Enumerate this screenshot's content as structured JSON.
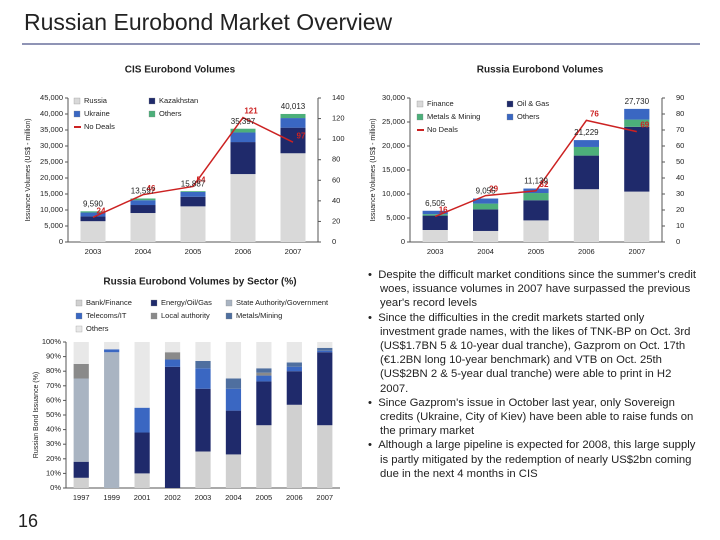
{
  "title": "Russian Eurobond Market Overview",
  "page_number": "16",
  "bullets": [
    "Despite the difficult market conditions since the summer's credit woes, issuance volumes in 2007 have surpassed the previous year's record levels",
    "Since the difficulties in the credit markets started only investment grade names, with the likes of TNK-BP on Oct. 3rd (US$1.7BN 5 & 10-year dual tranche), Gazprom on Oct. 17th (€1.2BN long 10-year benchmark) and VTB on Oct. 25th (US$2BN 2 & 5-year dual tranche) were able to print in H2 2007.",
    "Since Gazprom's issue in October last year, only Sovereign credits (Ukraine, City of Kiev) have been able to raise funds on the primary market",
    "Although a large pipeline is expected for 2008, this large supply is partly mitigated by the redemption of nearly US$2bn coming due in the next 4 months in CIS"
  ],
  "chart_data": [
    {
      "type": "bar",
      "stacked": true,
      "title": "CIS Eurobond Volumes",
      "y_label": "Issuance Volumes (US$ - million)",
      "categories": [
        "2003",
        "2004",
        "2005",
        "2006",
        "2007"
      ],
      "series": [
        {
          "name": "Russia",
          "color": "#d9d9d9",
          "values": [
            6505,
            9055,
            11139,
            21229,
            27730
          ]
        },
        {
          "name": "Kazakhstan",
          "color": "#1f2a6b",
          "values": [
            1500,
            2500,
            3000,
            10000,
            8000
          ]
        },
        {
          "name": "Ukraine",
          "color": "#3a67c2",
          "values": [
            1200,
            1500,
            1500,
            3000,
            3000
          ]
        },
        {
          "name": "Others",
          "color": "#4caf7a",
          "values": [
            385,
            542,
            248,
            1168,
            1283
          ]
        },
        {
          "name": "No Deals",
          "color": "#cc2222",
          "axis": "y2",
          "values": [
            24,
            46,
            54,
            121,
            97
          ]
        }
      ],
      "totals": {
        "values": [
          9590,
          13597,
          15887,
          35397,
          40013
        ],
        "value_labels": [
          "9,590",
          "13,597",
          "15,887",
          "35,397",
          "40,013"
        ]
      },
      "ylim": [
        0,
        45000
      ],
      "yticks": [
        0,
        {
          "value": 5000,
          "label": "5,000"
        },
        {
          "value": 10000,
          "label": "10,000"
        },
        {
          "value": 15000,
          "label": "15,000"
        },
        {
          "value": 20000,
          "label": "20,000"
        },
        {
          "value": 25000,
          "label": "25,000"
        },
        {
          "value": 30000,
          "label": "30,000"
        },
        {
          "value": 35000,
          "label": "35,000"
        },
        {
          "value": 40000,
          "label": "40,000"
        },
        {
          "value": 45000,
          "label": "45,000"
        }
      ],
      "y2lim": [
        0,
        140
      ],
      "y2ticks": [
        0,
        20,
        40,
        60,
        80,
        100,
        120,
        140
      ]
    },
    {
      "type": "bar",
      "stacked": true,
      "title": "Russia Eurobond Volumes",
      "y_label": "Issuance Volumes (US$ - million)",
      "categories": [
        "2003",
        "2004",
        "2005",
        "2006",
        "2007"
      ],
      "series": [
        {
          "name": "Finance",
          "color": "#d9d9d9",
          "values": [
            2500,
            2300,
            4500,
            11000,
            10500
          ]
        },
        {
          "name": "Oil & Gas",
          "color": "#1f2a6b",
          "values": [
            3000,
            4500,
            4200,
            7000,
            13500
          ]
        },
        {
          "name": "Metals & Mining",
          "color": "#4caf7a",
          "values": [
            300,
            1200,
            1500,
            1800,
            1500
          ]
        },
        {
          "name": "Others",
          "color": "#3a67c2",
          "values": [
            705,
            1055,
            939,
            1429,
            2230
          ]
        },
        {
          "name": "No Deals",
          "color": "#cc2222",
          "axis": "y2",
          "values": [
            16,
            29,
            32,
            76,
            69
          ]
        }
      ],
      "totals": {
        "values": [
          6505,
          9055,
          11139,
          21229,
          27730
        ],
        "value_labels": [
          "6,505",
          "9,055",
          "11,139",
          "21,229",
          "27,730"
        ]
      },
      "ylim": [
        0,
        30000
      ],
      "yticks": [
        0,
        {
          "value": 5000,
          "label": "5,000"
        },
        {
          "value": 10000,
          "label": "10,000"
        },
        {
          "value": 15000,
          "label": "15,000"
        },
        {
          "value": 20000,
          "label": "20,000"
        },
        {
          "value": 25000,
          "label": "25,000"
        },
        {
          "value": 30000,
          "label": "30,000"
        }
      ],
      "y2lim": [
        0,
        90
      ],
      "y2ticks": [
        0,
        10,
        20,
        30,
        40,
        50,
        60,
        70,
        80,
        90
      ]
    },
    {
      "type": "bar",
      "stacked": true,
      "title": "Russia Eurobond Volumes by Sector (%)",
      "y_label": "Russian Bond Issuance (%)",
      "categories": [
        "1997",
        "1999",
        "2001",
        "2002",
        "2003",
        "2004",
        "2005",
        "2006",
        "2007"
      ],
      "series": [
        {
          "name": "Bank/Finance",
          "color": "#d0d0d0",
          "values": [
            7,
            0,
            10,
            0,
            25,
            23,
            43,
            57,
            43
          ]
        },
        {
          "name": "Energy/Oil/Gas",
          "color": "#1f2a6b",
          "values": [
            11,
            0,
            28,
            83,
            43,
            30,
            30,
            23,
            50
          ]
        },
        {
          "name": "State Authority/Government",
          "color": "#a9b4c2",
          "values": [
            57,
            93,
            0,
            0,
            0,
            0,
            0,
            0,
            0
          ]
        },
        {
          "name": "Telecoms/IT",
          "color": "#3a67c2",
          "values": [
            0,
            2,
            17,
            5,
            14,
            15,
            4,
            3,
            1
          ]
        },
        {
          "name": "Local authority",
          "color": "#8a8a8a",
          "values": [
            10,
            0,
            0,
            5,
            0,
            0,
            2,
            0,
            0
          ]
        },
        {
          "name": "Metals/Mining",
          "color": "#4f6f9f",
          "values": [
            0,
            0,
            0,
            0,
            5,
            7,
            3,
            3,
            2
          ]
        },
        {
          "name": "Others",
          "color": "#e8e8e8",
          "values": [
            15,
            5,
            45,
            7,
            13,
            25,
            18,
            14,
            4
          ]
        }
      ],
      "ylim": [
        0,
        100
      ],
      "yticks": [
        {
          "value": 0,
          "label": "0%"
        },
        {
          "value": 10,
          "label": "10%"
        },
        {
          "value": 20,
          "label": "20%"
        },
        {
          "value": 30,
          "label": "30%"
        },
        {
          "value": 40,
          "label": "40%"
        },
        {
          "value": 50,
          "label": "50%"
        },
        {
          "value": 60,
          "label": "60%"
        },
        {
          "value": 70,
          "label": "70%"
        },
        {
          "value": 80,
          "label": "80%"
        },
        {
          "value": 90,
          "label": "90%"
        },
        {
          "value": 100,
          "label": "100%"
        }
      ]
    }
  ]
}
